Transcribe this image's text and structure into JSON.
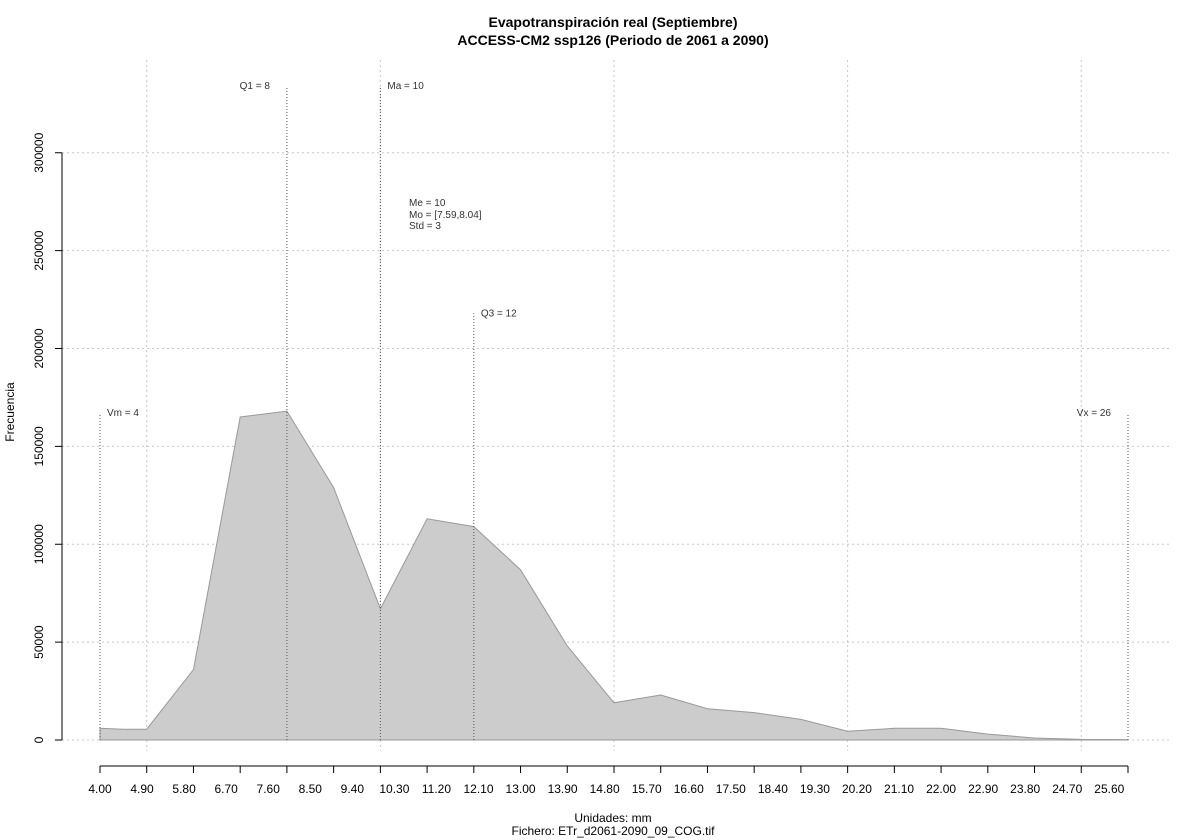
{
  "chart_data": {
    "type": "area",
    "title": "Evapotranspiración real (Septiembre)",
    "subtitle": "ACCESS-CM2 ssp126 (Periodo de 2061 a 2090)",
    "xlabel": "Unidades: mm",
    "ylabel": "Frecuencia",
    "caption": "Fichero: ETr_d2061-2090_09_COG.tif",
    "xlim": [
      4,
      26
    ],
    "ylim": [
      0,
      300000
    ],
    "grid": true,
    "fill_color": "#cccccc",
    "stroke_color": "#999999",
    "x_tick_labels": [
      "4.00",
      "4.90",
      "5.80",
      "6.70",
      "7.60",
      "8.50",
      "9.40",
      "10.30",
      "11.20",
      "12.10",
      "13.00",
      "13.90",
      "14.80",
      "15.70",
      "16.60",
      "17.50",
      "18.40",
      "19.30",
      "20.20",
      "21.10",
      "22.00",
      "22.90",
      "23.80",
      "24.70",
      "25.60"
    ],
    "y_ticks": [
      0,
      50000,
      100000,
      150000,
      200000,
      250000,
      300000
    ],
    "y_tick_labels": [
      "0",
      "50000",
      "100000",
      "150000",
      "200000",
      "250000",
      "300000"
    ],
    "x_grid": [
      5,
      10,
      15,
      20,
      25
    ],
    "x": [
      4,
      4.5,
      5,
      6,
      7,
      8,
      9,
      10,
      11,
      12,
      13,
      14,
      15,
      16,
      17,
      18,
      19,
      20,
      21,
      22,
      23,
      24,
      25,
      26
    ],
    "y": [
      6000,
      5500,
      5500,
      36000,
      165000,
      168000,
      129000,
      67000,
      113000,
      109000,
      87000,
      48000,
      19000,
      23000,
      16000,
      14000,
      10500,
      4500,
      6000,
      6000,
      3000,
      1000,
      300,
      200
    ],
    "markers": [
      {
        "x": 4,
        "height": 167000,
        "label": "Vm = 4",
        "side": "right"
      },
      {
        "x": 8,
        "height": 334000,
        "label": "Q1 = 8",
        "side": "left"
      },
      {
        "x": 10,
        "height": 334000,
        "label": "Ma = 10",
        "side": "right"
      },
      {
        "x": 12,
        "height": 218000,
        "label": "Q3 = 12",
        "side": "right"
      },
      {
        "x": 26,
        "height": 167000,
        "label": "Vx = 26",
        "side": "left"
      }
    ],
    "stats": [
      "Me = 10",
      "Mo = [7.59,8.04]",
      "Std = 3"
    ]
  }
}
